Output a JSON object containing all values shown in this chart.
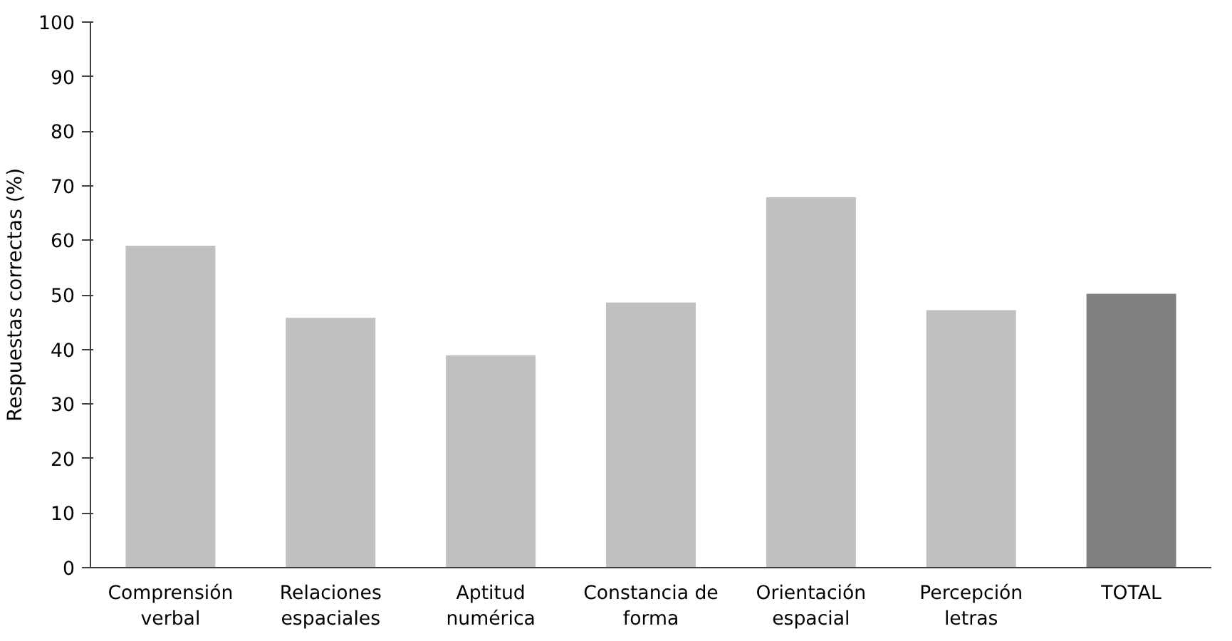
{
  "chart_data": {
    "type": "bar",
    "ylabel": "Respuestas correctas (%)",
    "categories": [
      "Comprensión verbal",
      "Relaciones espaciales",
      "Aptitud numérica",
      "Constancia de forma",
      "Orientación espacial",
      "Percepción letras",
      "TOTAL"
    ],
    "values": [
      59,
      45.8,
      38.9,
      48.6,
      67.9,
      47.2,
      50.2
    ],
    "colors": [
      "#c0c0c0",
      "#c0c0c0",
      "#c0c0c0",
      "#c0c0c0",
      "#c0c0c0",
      "#c0c0c0",
      "#808080"
    ],
    "ylim": [
      0,
      100
    ],
    "yticks": [
      0,
      10,
      20,
      30,
      40,
      50,
      60,
      70,
      80,
      90,
      100
    ],
    "grid": false
  }
}
